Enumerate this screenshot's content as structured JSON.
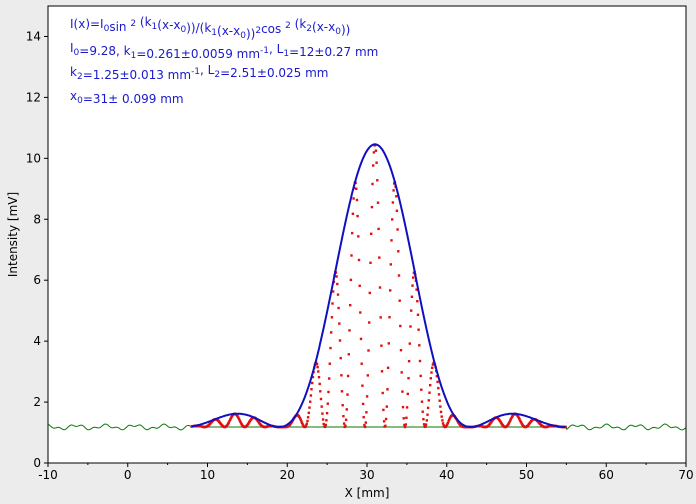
{
  "chart_data": {
    "type": "scatter",
    "xlabel": "X [mm]",
    "ylabel": "Intensity [mV]",
    "xlim": [
      -10,
      70
    ],
    "ylim": [
      0,
      15
    ],
    "xticks": [
      -10,
      0,
      10,
      20,
      30,
      40,
      50,
      60,
      70
    ],
    "yticks": [
      0,
      2,
      4,
      6,
      8,
      10,
      12,
      14
    ],
    "grid": false,
    "annotations": [
      {
        "segments": [
          {
            "t": "I(x)=I"
          },
          {
            "t": "0",
            "sub": true
          },
          {
            "t": "sin "
          },
          {
            "t": "2",
            "sup": true
          },
          {
            "t": " (k"
          },
          {
            "t": "1",
            "sub": true
          },
          {
            "t": "(x-x"
          },
          {
            "t": "0",
            "sub": true
          },
          {
            "t": "))/(k"
          },
          {
            "t": "1",
            "sub": true
          },
          {
            "t": "(x-x"
          },
          {
            "t": "0",
            "sub": true
          },
          {
            "t": "))"
          },
          {
            "t": "2",
            "sup": true
          },
          {
            "t": "cos "
          },
          {
            "t": "2",
            "sup": true
          },
          {
            "t": " (k"
          },
          {
            "t": "2",
            "sub": true
          },
          {
            "t": "(x-x"
          },
          {
            "t": "0",
            "sub": true
          },
          {
            "t": "))"
          }
        ]
      },
      {
        "segments": [
          {
            "t": "I"
          },
          {
            "t": "0",
            "sub": true
          },
          {
            "t": "=9.28,  k"
          },
          {
            "t": "1",
            "sub": true
          },
          {
            "t": "=0.261±0.0059 mm"
          },
          {
            "t": "-1",
            "sup": true
          },
          {
            "t": ",   L"
          },
          {
            "t": "1",
            "sub": true
          },
          {
            "t": "=12±0.27 mm"
          }
        ]
      },
      {
        "segments": [
          {
            "t": "k"
          },
          {
            "t": "2",
            "sub": true
          },
          {
            "t": "=1.25±0.013 mm"
          },
          {
            "t": "-1",
            "sup": true
          },
          {
            "t": ",   L"
          },
          {
            "t": "2",
            "sub": true
          },
          {
            "t": "=2.51±0.025 mm"
          }
        ]
      },
      {
        "segments": [
          {
            "t": "x"
          },
          {
            "t": "0",
            "sub": true
          },
          {
            "t": "=31±  0.099 mm"
          }
        ]
      }
    ],
    "fit": {
      "I0": 9.28,
      "k1": 0.261,
      "k2": 1.25,
      "x0": 31,
      "offset": 1.18,
      "x_range": [
        8,
        55
      ],
      "color": "#1010c0"
    },
    "series": [
      {
        "color": "#e01010",
        "x_range": [
          8,
          55
        ],
        "kind": "measured-fringes"
      },
      {
        "color": "#0a7a0a",
        "x_range": [
          -10,
          70
        ],
        "kind": "background"
      }
    ],
    "colors": {
      "background": "#ececec",
      "plot_area": "#ffffff",
      "fit": "#1010c0",
      "data": "#e01010",
      "baseline": "#0a7a0a"
    }
  }
}
